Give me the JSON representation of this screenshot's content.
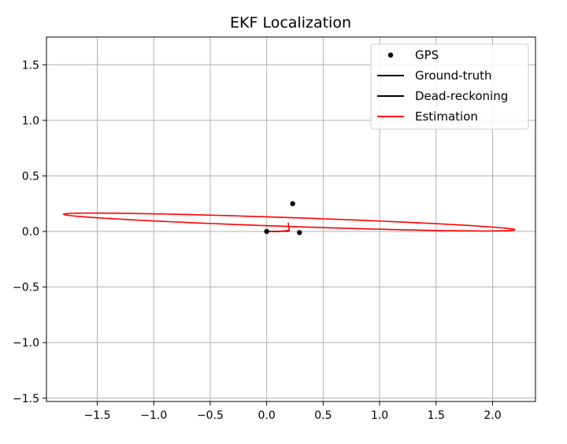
{
  "chart_data": {
    "type": "line",
    "title": "EKF Localization",
    "xlabel": "",
    "ylabel": "",
    "xlim": [
      -1.95,
      2.38
    ],
    "ylim": [
      -1.53,
      1.75
    ],
    "xticks": [
      -1.5,
      -1.0,
      -0.5,
      0.0,
      0.5,
      1.0,
      1.5,
      2.0
    ],
    "xtick_labels": [
      "−1.5",
      "−1.0",
      "−0.5",
      "0.0",
      "0.5",
      "1.0",
      "1.5",
      "2.0"
    ],
    "yticks": [
      -1.5,
      -1.0,
      -0.5,
      0.0,
      0.5,
      1.0,
      1.5
    ],
    "ytick_labels": [
      "−1.5",
      "−1.0",
      "−0.5",
      "0.0",
      "0.5",
      "1.0",
      "1.5"
    ],
    "grid": true,
    "legend_position": "top-right",
    "legend": [
      {
        "label": "GPS",
        "kind": "marker",
        "color": "#000000"
      },
      {
        "label": "Ground-truth",
        "kind": "line",
        "color": "#000000"
      },
      {
        "label": "Dead-reckoning",
        "kind": "line",
        "color": "#000000"
      },
      {
        "label": "Estimation",
        "kind": "line",
        "color": "#ff0000"
      }
    ],
    "gps_points": [
      {
        "x": 0.0,
        "y": 0.0
      },
      {
        "x": 0.23,
        "y": 0.25
      },
      {
        "x": 0.29,
        "y": -0.01
      }
    ],
    "ground_truth": [
      {
        "x": 0.0,
        "y": 0.0
      },
      {
        "x": 0.1,
        "y": 0.001
      },
      {
        "x": 0.2,
        "y": 0.004
      }
    ],
    "dead_reckoning": [
      {
        "x": 0.0,
        "y": 0.0
      },
      {
        "x": 0.1,
        "y": 0.001
      },
      {
        "x": 0.2,
        "y": 0.004
      }
    ],
    "estimation": [
      {
        "x": 0.0,
        "y": 0.0
      },
      {
        "x": 0.1,
        "y": 0.0
      },
      {
        "x": 0.2,
        "y": 0.01
      },
      {
        "x": 0.19,
        "y": 0.08
      }
    ],
    "covariance_ellipse": {
      "center_x": 0.2,
      "center_y": 0.085,
      "semi_major": 2.0,
      "semi_minor": 0.04,
      "angle_deg": -2.0,
      "color": "#ff0000"
    },
    "colors": {
      "gps": "#000000",
      "ground_truth": "#000000",
      "dead_reckoning": "#000000",
      "estimation": "#ff0000",
      "grid": "#b0b0b0",
      "axes": "#000000"
    }
  }
}
